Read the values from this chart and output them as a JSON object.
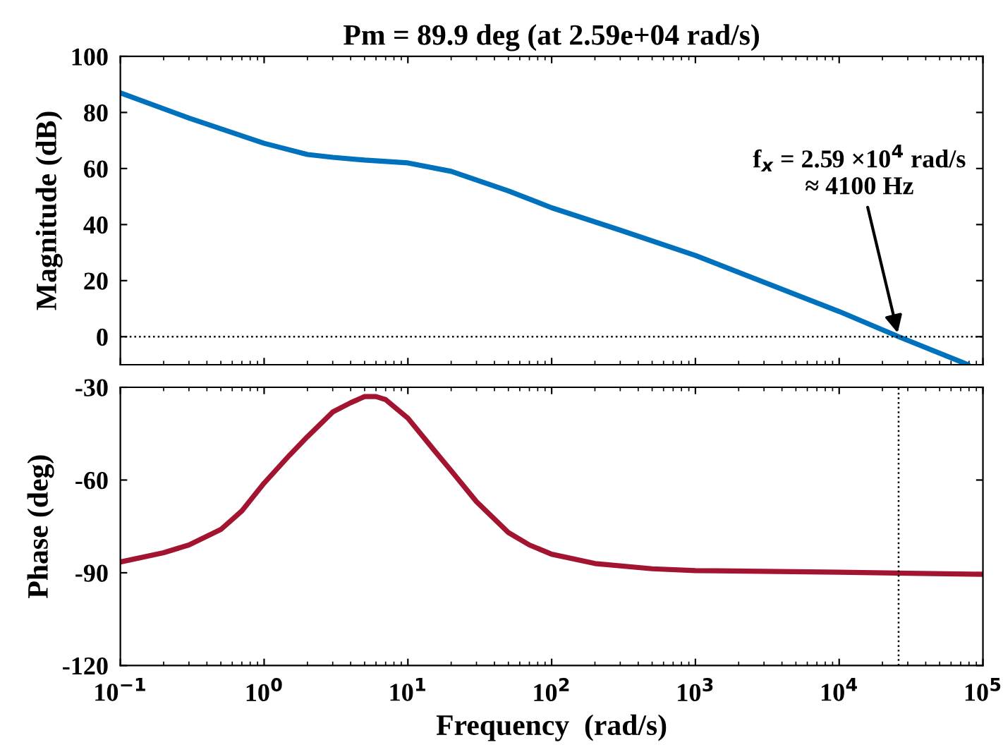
{
  "chart_data": [
    {
      "type": "line",
      "title": "Pm = 89.9 deg (at 2.59e+04 rad/s)",
      "ylabel": "Magnitude (dB)",
      "log": "x",
      "xlim": [
        0.1,
        100000
      ],
      "ylim": [
        -10,
        100
      ],
      "yticks": [
        0,
        20,
        40,
        60,
        80,
        100
      ],
      "xticks": [
        0.1,
        1,
        10,
        100,
        1000,
        10000,
        100000
      ],
      "tick_labels": "y",
      "grid": false,
      "legend": false,
      "series": [
        {
          "color": "#0072bd",
          "x": [
            0.1,
            0.3,
            1,
            2,
            3,
            5,
            10,
            20,
            50,
            100,
            300,
            1000,
            10000,
            25900,
            79000
          ],
          "values": [
            87,
            78,
            69,
            65,
            64,
            63,
            62,
            59,
            52,
            46,
            38,
            29,
            9,
            0,
            -10
          ]
        }
      ],
      "ref_lines": [
        {
          "axis": "y",
          "value": 0,
          "line_style": "dotted",
          "color": "#000000"
        }
      ],
      "annotations": [
        {
          "text": "f$_{x}$ = 2.59 ×10$^{4}$ rad/s\n≈ 4100 Hz",
          "x": 25900,
          "y": 0
        }
      ]
    },
    {
      "type": "line",
      "xlabel": "Frequency  (rad/s)",
      "ylabel": "Phase (deg)",
      "log": "x",
      "xlim": [
        0.1,
        100000
      ],
      "ylim": [
        -120,
        -30
      ],
      "yticks": [
        -120,
        -90,
        -60,
        -30
      ],
      "xticks": [
        {
          "value": 0.1,
          "label": "10$^{−1}$"
        },
        {
          "value": 1,
          "label": "10$^{0}$"
        },
        {
          "value": 10,
          "label": "10$^{1}$"
        },
        {
          "value": 100,
          "label": "10$^{2}$"
        },
        {
          "value": 1000,
          "label": "10$^{3}$"
        },
        {
          "value": 10000,
          "label": "10$^{4}$"
        },
        {
          "value": 100000,
          "label": "10$^{5}$"
        }
      ],
      "grid": false,
      "legend": false,
      "series": [
        {
          "color": "#a2142f",
          "x": [
            0.1,
            0.2,
            0.3,
            0.5,
            0.7,
            1,
            1.5,
            2,
            3,
            4,
            5,
            6,
            7,
            10,
            15,
            20,
            30,
            50,
            70,
            100,
            200,
            500,
            1000,
            10000,
            100000
          ],
          "values": [
            -86.5,
            -83.5,
            -81,
            -76,
            -70,
            -61,
            -52,
            -46,
            -38,
            -35,
            -33,
            -33,
            -34,
            -40,
            -50,
            -57,
            -67,
            -77,
            -81,
            -84,
            -87,
            -88.7,
            -89.3,
            -89.8,
            -90.5
          ]
        }
      ],
      "ref_lines": [
        {
          "axis": "x",
          "value": 25900,
          "line_style": "dotted",
          "color": "#000000"
        }
      ]
    }
  ]
}
